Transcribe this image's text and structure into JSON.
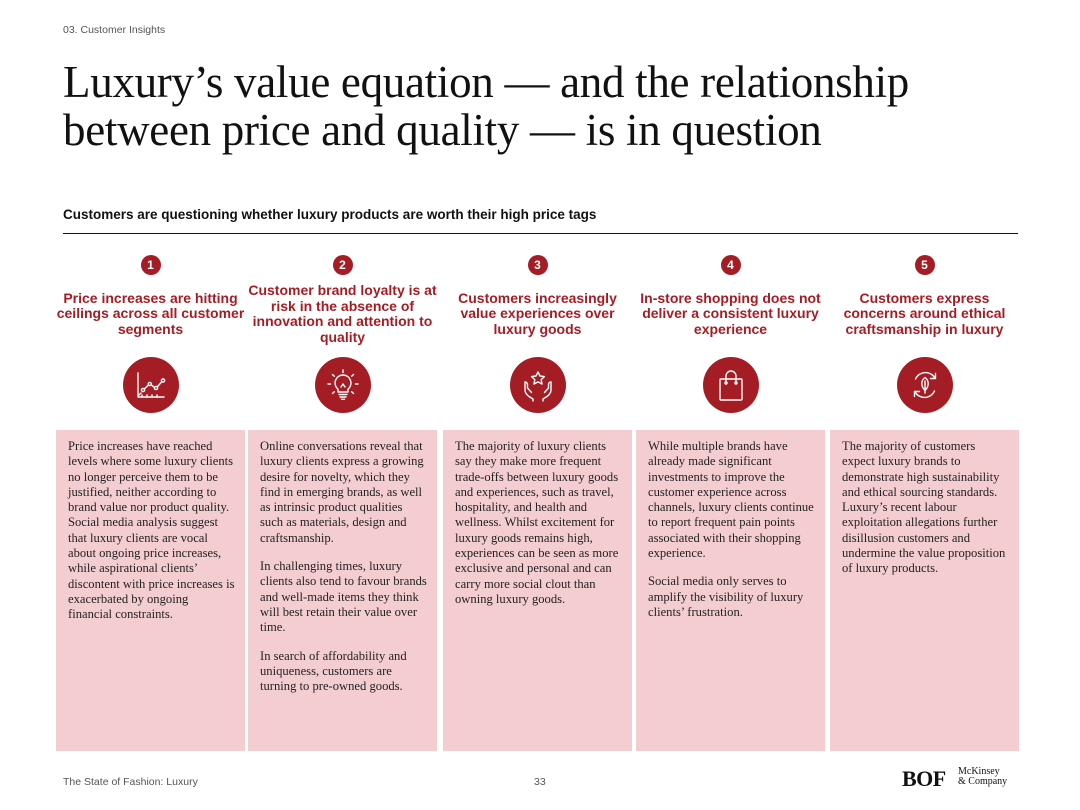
{
  "header": {
    "section": "03. Customer Insights",
    "title": "Luxury’s value equation — and the relationship between price and quality — is in question",
    "subtitle": "Customers are questioning whether luxury products are worth their high price tags"
  },
  "columns": [
    {
      "number": "1",
      "heading": "Price increases are hitting ceilings across all customer segments",
      "icon": "chart-icon",
      "paragraphs": [
        "Price increases have reached levels where some luxury clients no longer perceive them to be justified, neither according to brand value nor product quality. Social media analysis suggest that luxury clients are vocal about ongoing price increases, while aspirational clients’ discontent with price increases is exacerbated by ongoing financial constraints."
      ]
    },
    {
      "number": "2",
      "heading": "Customer brand loyalty is at risk in the absence of innovation and attention to quality",
      "icon": "lightbulb-icon",
      "paragraphs": [
        "Online conversations reveal that luxury clients express a growing desire for novelty, which they find in emerging brands, as well as intrinsic product qualities such as materials, design and craftsmanship.",
        "In challenging times, luxury clients also tend to favour brands and well-made items they think will best retain their value over time.",
        "In search of affordability and uniqueness, customers are turning to pre-owned goods."
      ]
    },
    {
      "number": "3",
      "heading": "Customers increasingly value experiences over luxury goods",
      "icon": "hands-star-icon",
      "paragraphs": [
        "The majority of luxury clients say they make more frequent trade-offs between luxury goods and experiences, such as travel, hospitality, and health and wellness. Whilst excitement for luxury goods remains high, experiences can be seen as more exclusive and personal and can carry more social clout than owning luxury goods."
      ]
    },
    {
      "number": "4",
      "heading": "In-store shopping does not deliver a consistent luxury experience",
      "icon": "shopping-bag-icon",
      "paragraphs": [
        "While multiple brands have already made significant investments to improve the customer experience across channels, luxury clients continue to report frequent pain points associated with their shopping experience.",
        "Social media only serves to amplify the visibility of luxury clients’ frustration."
      ]
    },
    {
      "number": "5",
      "heading": "Customers express concerns around ethical craftsmanship in luxury",
      "icon": "recycle-leaf-icon",
      "paragraphs": [
        "The majority of customers expect luxury brands to demonstrate high sustainability and ethical sourcing standards. Luxury’s recent labour exploitation allegations further disillusion customers and undermine the value proposition of luxury products."
      ]
    }
  ],
  "footer": {
    "source": "The State of Fashion: Luxury",
    "page": "33",
    "logo_bof": "BOF",
    "logo_mckinsey": "McKinsey & Company"
  },
  "colors": {
    "accent": "#a51d24",
    "card": "#f4cdd1"
  }
}
